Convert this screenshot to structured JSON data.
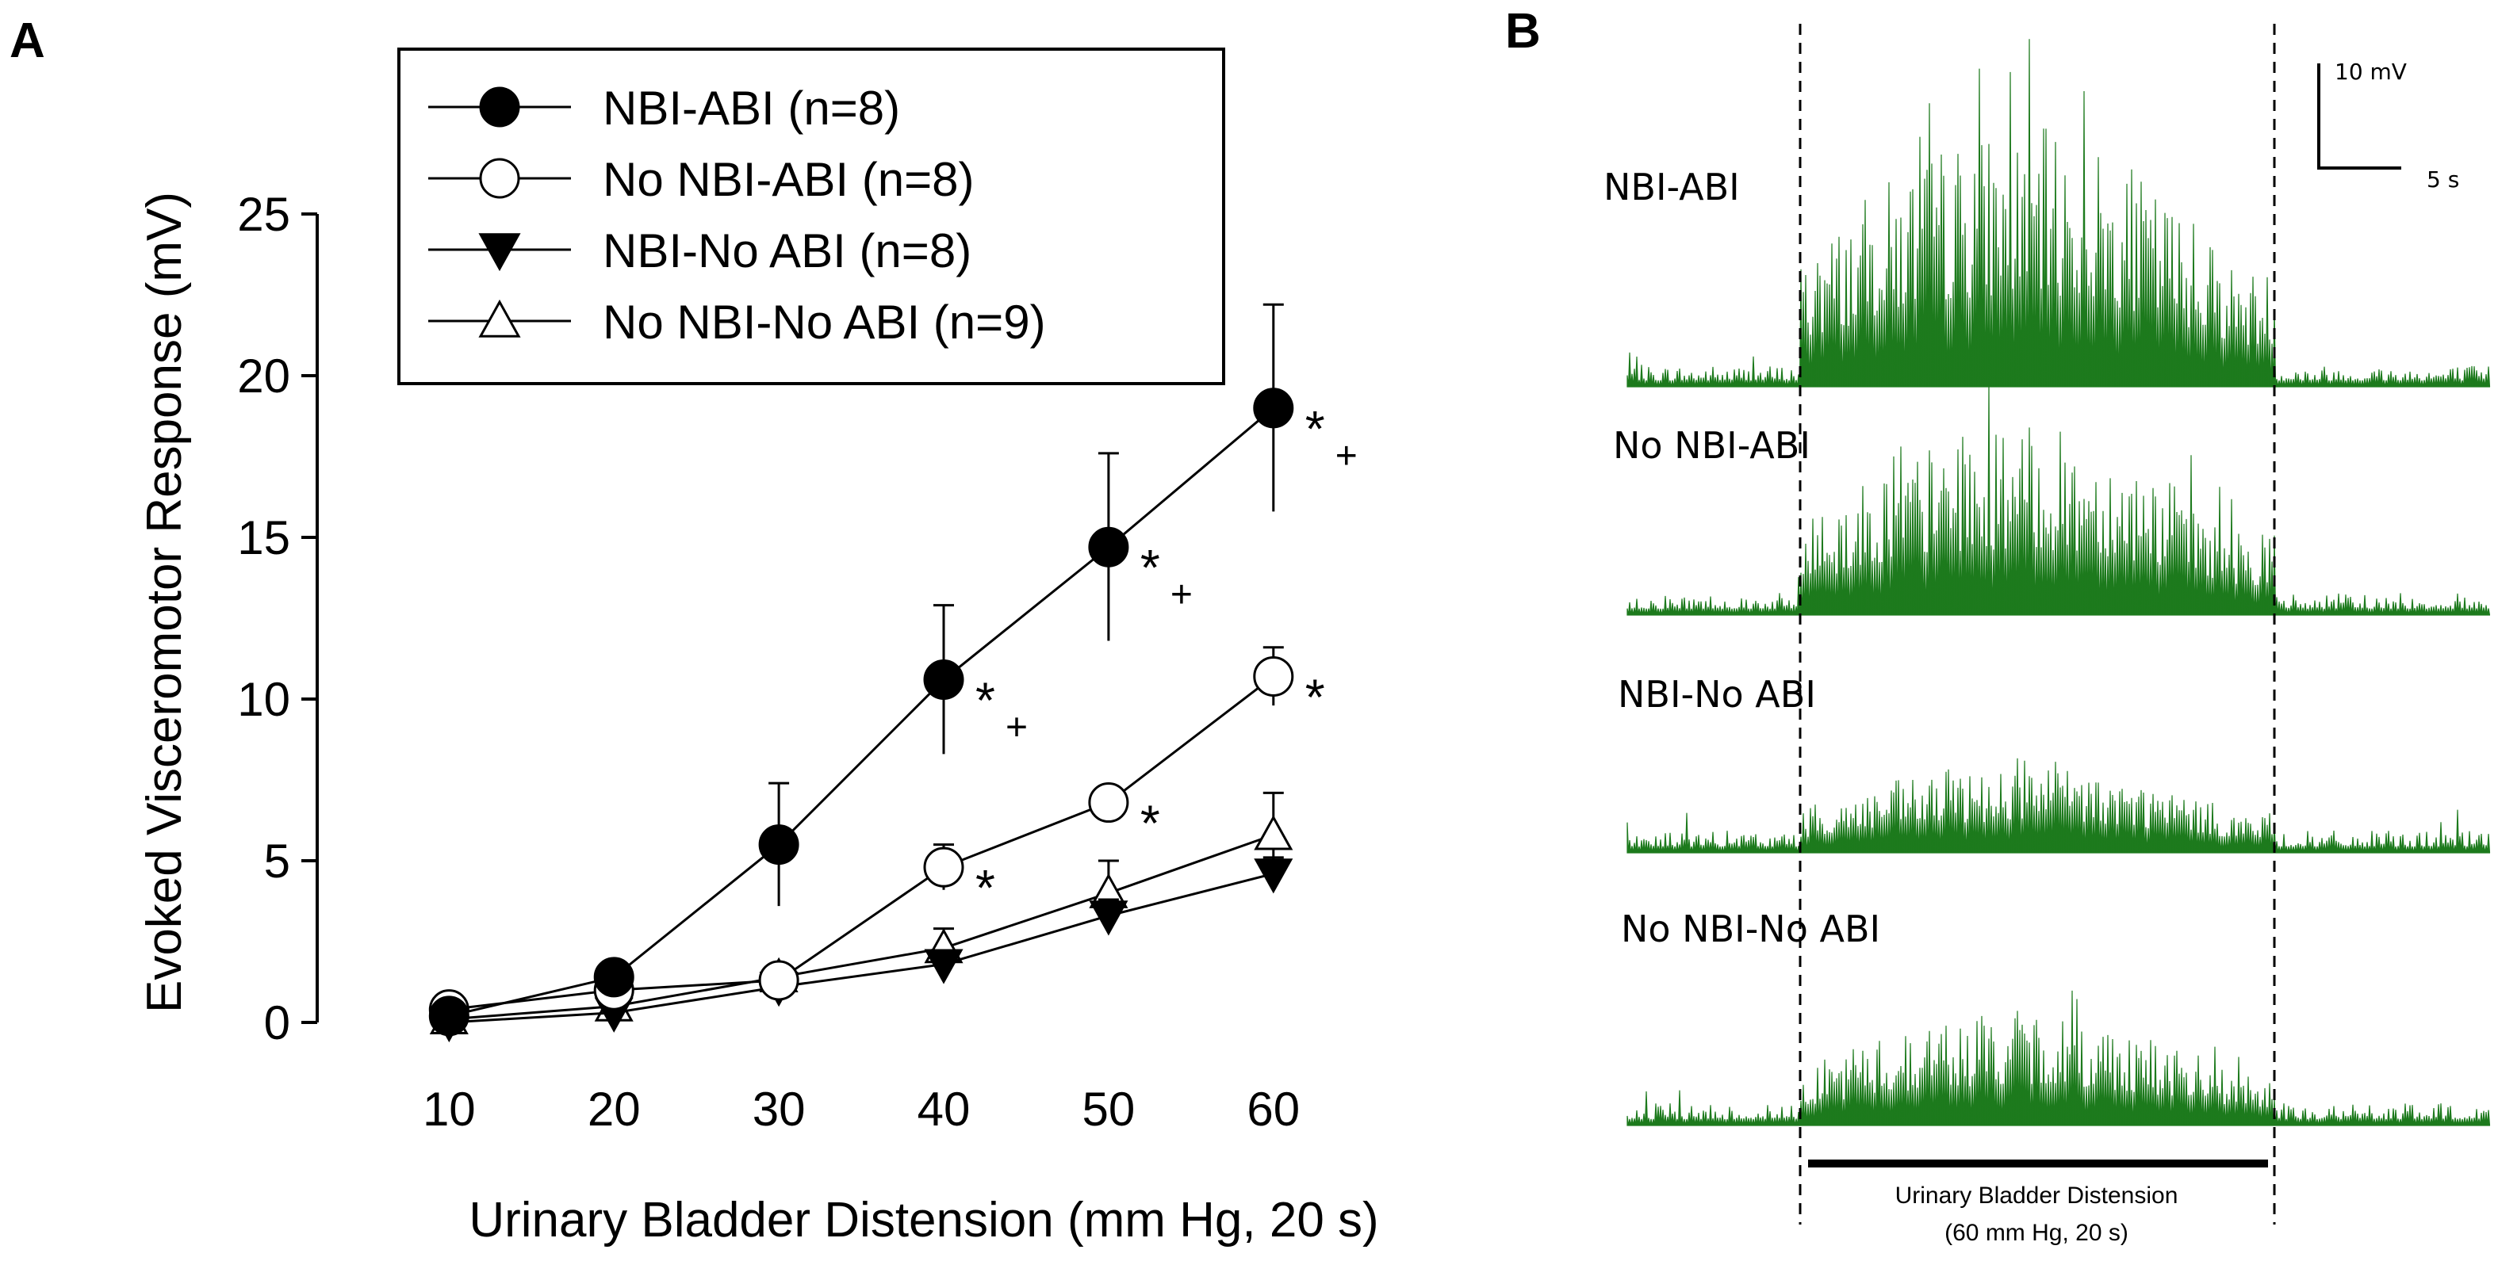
{
  "panels": {
    "a_label": "A",
    "b_label": "B"
  },
  "chart_data": [
    {
      "type": "line",
      "panel": "A",
      "title": "",
      "xlabel": "Urinary Bladder Distension (mm Hg, 20 s)",
      "ylabel": "Evoked Visceromotor Response (mV)",
      "x": [
        10,
        20,
        30,
        40,
        50,
        60
      ],
      "xlim": [
        2,
        78
      ],
      "ylim": [
        0,
        25
      ],
      "yticks": [
        0,
        5,
        10,
        15,
        20,
        25
      ],
      "xticks": [
        10,
        20,
        30,
        40,
        50,
        60
      ],
      "grid": false,
      "legend_position": "top-left",
      "series": [
        {
          "name": "NBI-ABI (n=8)",
          "marker": "circle-filled",
          "values": [
            0.2,
            1.4,
            5.5,
            10.6,
            14.7,
            19.0
          ],
          "errors": [
            0.2,
            0.5,
            1.9,
            2.3,
            2.9,
            3.2
          ],
          "annotations": [
            "",
            "",
            "",
            "*+",
            "*+",
            "*+"
          ]
        },
        {
          "name": "No NBI-ABI (n=8)",
          "marker": "circle-open",
          "values": [
            0.4,
            1.0,
            1.3,
            4.8,
            6.8,
            10.7
          ],
          "errors": [
            0.2,
            0.3,
            0.3,
            0.7,
            0.5,
            0.9
          ],
          "annotations": [
            "",
            "",
            "",
            "*",
            "*",
            "*"
          ]
        },
        {
          "name": "NBI-No ABI (n=8)",
          "marker": "triangle-down-filled",
          "values": [
            0.0,
            0.3,
            1.1,
            1.8,
            3.3,
            4.6
          ],
          "errors": [
            0.1,
            0.2,
            0.2,
            0.3,
            0.5,
            0.5
          ],
          "annotations": [
            "",
            "",
            "",
            "",
            "",
            ""
          ]
        },
        {
          "name": "No NBI-No ABI (n=9)",
          "marker": "triangle-up-open",
          "values": [
            0.1,
            0.5,
            1.4,
            2.3,
            4.0,
            5.8
          ],
          "errors": [
            0.1,
            0.2,
            0.3,
            0.6,
            1.0,
            1.3
          ],
          "annotations": [
            "",
            "",
            "",
            "",
            "",
            ""
          ]
        }
      ]
    },
    {
      "type": "trace",
      "panel": "B",
      "color": "#1d7a1d",
      "traces": [
        {
          "name": "NBI-ABI",
          "relative_amplitude": 1.0
        },
        {
          "name": "No NBI-ABI",
          "relative_amplitude": 0.72
        },
        {
          "name": "NBI-No ABI",
          "relative_amplitude": 0.34
        },
        {
          "name": "No NBI-No ABI",
          "relative_amplitude": 0.44
        }
      ],
      "scale_bar": {
        "vertical": "10 mV",
        "horizontal": "5 s"
      },
      "stimulus_label_line1": "Urinary Bladder Distension",
      "stimulus_label_line2": "(60 mm Hg, 20 s)"
    }
  ],
  "colors": {
    "axis": "#000000",
    "trace": "#1d7a1d",
    "background": "#ffffff"
  }
}
